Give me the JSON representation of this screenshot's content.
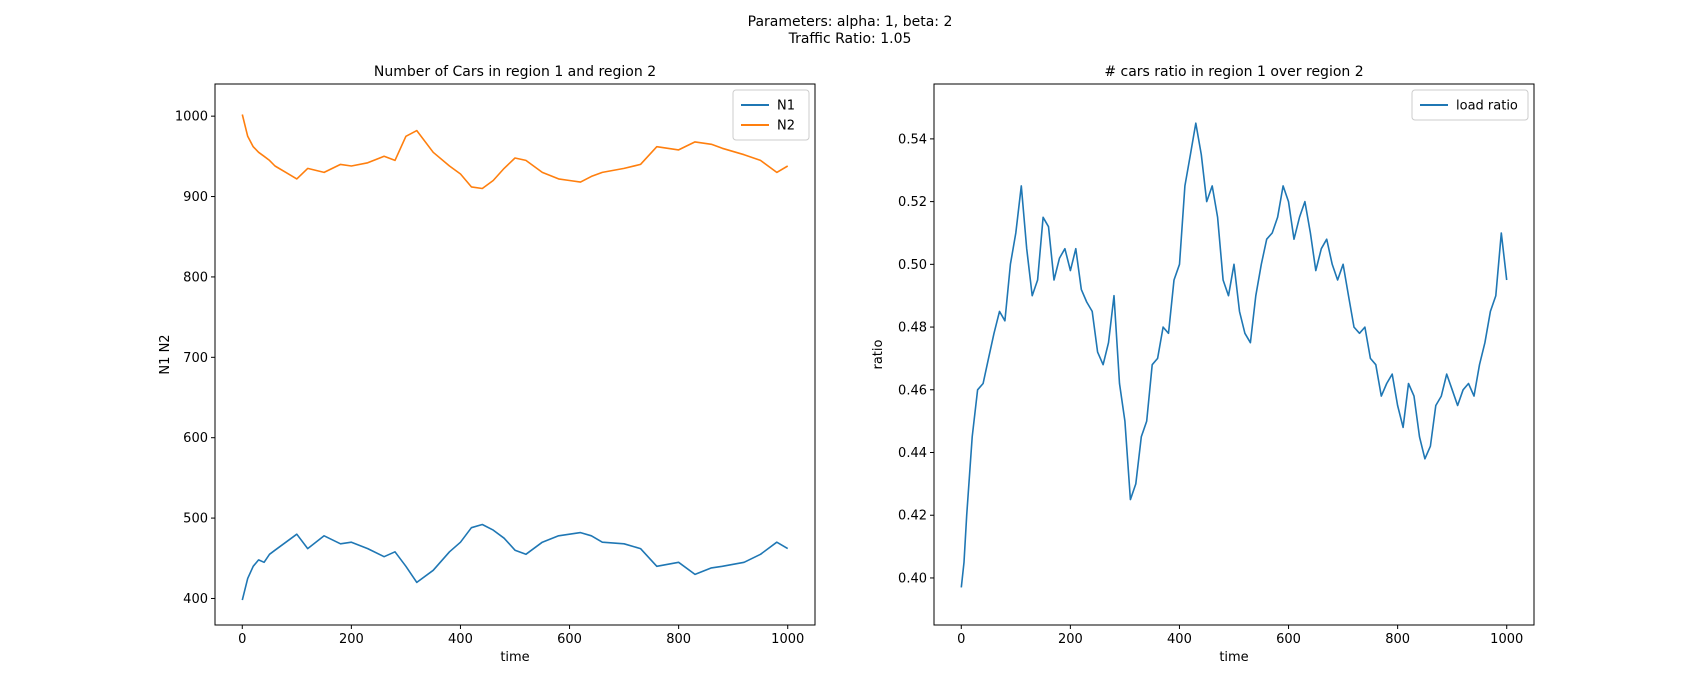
{
  "suptitle": {
    "line1": "Parameters: alpha: 1, beta: 2",
    "line2": "Traffic Ratio:  1.05"
  },
  "chart_data": [
    {
      "type": "line",
      "title": "Number of Cars in region 1 and region 2",
      "xlabel": "time",
      "ylabel": "N1 N2",
      "xlim": [
        -50,
        1050
      ],
      "ylim": [
        367,
        1040
      ],
      "xticks": [
        0,
        200,
        400,
        600,
        800,
        1000
      ],
      "yticks": [
        400,
        500,
        600,
        700,
        800,
        900,
        1000
      ],
      "xtick_labels": [
        "0",
        "200",
        "400",
        "600",
        "800",
        "1000"
      ],
      "ytick_labels": [
        "400",
        "500",
        "600",
        "700",
        "800",
        "900",
        "1000"
      ],
      "legend_position": "top-right",
      "grid": false,
      "series": [
        {
          "name": "N1",
          "color": "#1f77b4",
          "x": [
            0,
            10,
            20,
            30,
            40,
            50,
            60,
            80,
            100,
            120,
            150,
            180,
            200,
            230,
            260,
            280,
            300,
            320,
            350,
            380,
            400,
            420,
            440,
            460,
            480,
            500,
            520,
            550,
            580,
            600,
            620,
            640,
            660,
            700,
            730,
            760,
            800,
            830,
            860,
            880,
            920,
            950,
            980,
            1000
          ],
          "values": [
            398,
            425,
            440,
            448,
            445,
            455,
            460,
            470,
            480,
            462,
            478,
            468,
            470,
            462,
            452,
            458,
            440,
            420,
            435,
            458,
            470,
            488,
            492,
            485,
            475,
            460,
            455,
            470,
            478,
            480,
            482,
            478,
            470,
            468,
            462,
            440,
            445,
            430,
            438,
            440,
            445,
            455,
            470,
            462
          ]
        },
        {
          "name": "N2",
          "color": "#ff7f0e",
          "x": [
            0,
            10,
            20,
            30,
            40,
            50,
            60,
            80,
            100,
            120,
            150,
            180,
            200,
            230,
            260,
            280,
            300,
            320,
            350,
            380,
            400,
            420,
            440,
            460,
            480,
            500,
            520,
            550,
            580,
            600,
            620,
            640,
            660,
            700,
            730,
            760,
            800,
            830,
            860,
            880,
            920,
            950,
            980,
            1000
          ],
          "values": [
            1002,
            975,
            962,
            955,
            950,
            945,
            938,
            930,
            922,
            935,
            930,
            940,
            938,
            942,
            950,
            945,
            975,
            982,
            955,
            938,
            928,
            912,
            910,
            920,
            935,
            948,
            945,
            930,
            922,
            920,
            918,
            925,
            930,
            935,
            940,
            962,
            958,
            968,
            965,
            960,
            952,
            945,
            930,
            938
          ]
        }
      ]
    },
    {
      "type": "line",
      "title": "# cars ratio in region 1 over region 2",
      "xlabel": "time",
      "ylabel": "ratio",
      "xlim": [
        -50,
        1050
      ],
      "ylim": [
        0.385,
        0.5575
      ],
      "xticks": [
        0,
        200,
        400,
        600,
        800,
        1000
      ],
      "yticks": [
        0.4,
        0.42,
        0.44,
        0.46,
        0.48,
        0.5,
        0.52,
        0.54
      ],
      "xtick_labels": [
        "0",
        "200",
        "400",
        "600",
        "800",
        "1000"
      ],
      "ytick_labels": [
        "0.40",
        "0.42",
        "0.44",
        "0.46",
        "0.48",
        "0.50",
        "0.52",
        "0.54"
      ],
      "legend_position": "top-right",
      "grid": false,
      "series": [
        {
          "name": "load ratio",
          "color": "#1f77b4",
          "x": [
            0,
            5,
            10,
            20,
            30,
            40,
            50,
            60,
            70,
            80,
            90,
            100,
            110,
            120,
            130,
            140,
            150,
            160,
            170,
            180,
            190,
            200,
            210,
            220,
            230,
            240,
            250,
            260,
            270,
            280,
            290,
            300,
            310,
            320,
            330,
            340,
            350,
            360,
            370,
            380,
            390,
            400,
            410,
            420,
            430,
            440,
            450,
            460,
            470,
            480,
            490,
            500,
            510,
            520,
            530,
            540,
            550,
            560,
            570,
            580,
            590,
            600,
            610,
            620,
            630,
            640,
            650,
            660,
            670,
            680,
            690,
            700,
            710,
            720,
            730,
            740,
            750,
            760,
            770,
            780,
            790,
            800,
            810,
            820,
            830,
            840,
            850,
            860,
            870,
            880,
            890,
            900,
            910,
            920,
            930,
            940,
            950,
            960,
            970,
            980,
            990,
            1000
          ],
          "values": [
            0.397,
            0.405,
            0.42,
            0.445,
            0.46,
            0.462,
            0.47,
            0.478,
            0.485,
            0.482,
            0.5,
            0.51,
            0.525,
            0.505,
            0.49,
            0.495,
            0.515,
            0.512,
            0.495,
            0.502,
            0.505,
            0.498,
            0.505,
            0.492,
            0.488,
            0.485,
            0.472,
            0.468,
            0.475,
            0.49,
            0.462,
            0.45,
            0.425,
            0.43,
            0.445,
            0.45,
            0.468,
            0.47,
            0.48,
            0.478,
            0.495,
            0.5,
            0.525,
            0.535,
            0.545,
            0.535,
            0.52,
            0.525,
            0.515,
            0.495,
            0.49,
            0.5,
            0.485,
            0.478,
            0.475,
            0.49,
            0.5,
            0.508,
            0.51,
            0.515,
            0.525,
            0.52,
            0.508,
            0.515,
            0.52,
            0.51,
            0.498,
            0.505,
            0.508,
            0.5,
            0.495,
            0.5,
            0.49,
            0.48,
            0.478,
            0.48,
            0.47,
            0.468,
            0.458,
            0.462,
            0.465,
            0.455,
            0.448,
            0.462,
            0.458,
            0.445,
            0.438,
            0.442,
            0.455,
            0.458,
            0.465,
            0.46,
            0.455,
            0.46,
            0.462,
            0.458,
            0.468,
            0.475,
            0.485,
            0.49,
            0.51,
            0.495
          ]
        }
      ]
    }
  ]
}
